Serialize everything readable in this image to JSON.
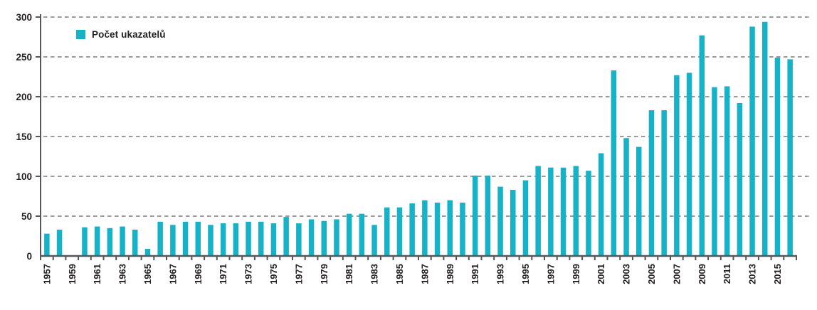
{
  "chart_data": {
    "type": "bar",
    "title": "",
    "legend": "Počet ukazatelů",
    "xlabel": "",
    "ylabel": "",
    "ylim": [
      0,
      300
    ],
    "yticks": [
      0,
      50,
      100,
      150,
      200,
      250,
      300
    ],
    "grid": "dashed-horizontal",
    "legend_position": "top-left",
    "bar_color": "#16b2c7",
    "grid_color": "#8c8c8c",
    "axis_color": "#55565a",
    "text_color": "#231f20",
    "x": [
      1957,
      1958,
      1959,
      1960,
      1961,
      1962,
      1963,
      1964,
      1965,
      1966,
      1967,
      1968,
      1969,
      1970,
      1971,
      1972,
      1973,
      1974,
      1975,
      1976,
      1977,
      1978,
      1979,
      1980,
      1981,
      1982,
      1983,
      1984,
      1985,
      1986,
      1987,
      1988,
      1989,
      1990,
      1991,
      1992,
      1993,
      1994,
      1995,
      1996,
      1997,
      1998,
      1999,
      2000,
      2001,
      2002,
      2003,
      2004,
      2005,
      2006,
      2007,
      2008,
      2009,
      2010,
      2011,
      2012,
      2013,
      2014,
      2015,
      2016
    ],
    "values": [
      28,
      33,
      0,
      36,
      37,
      35,
      37,
      33,
      9,
      43,
      39,
      43,
      43,
      39,
      41,
      41,
      43,
      43,
      41,
      49,
      41,
      46,
      44,
      46,
      53,
      53,
      39,
      61,
      61,
      66,
      70,
      67,
      70,
      67,
      101,
      101,
      87,
      83,
      95,
      113,
      111,
      111,
      113,
      107,
      129,
      233,
      148,
      137,
      183,
      183,
      227,
      230,
      277,
      212,
      213,
      192,
      288,
      294,
      249,
      247
    ],
    "xtick_labels": [
      "1957",
      "1959",
      "1961",
      "1963",
      "1965",
      "1967",
      "1969",
      "1971",
      "1973",
      "1975",
      "1977",
      "1979",
      "1981",
      "1983",
      "1985",
      "1987",
      "1989",
      "1991",
      "1993",
      "1995",
      "1997",
      "1999",
      "2001",
      "2003",
      "2005",
      "2007",
      "2009",
      "2011",
      "2013",
      "2015"
    ]
  }
}
